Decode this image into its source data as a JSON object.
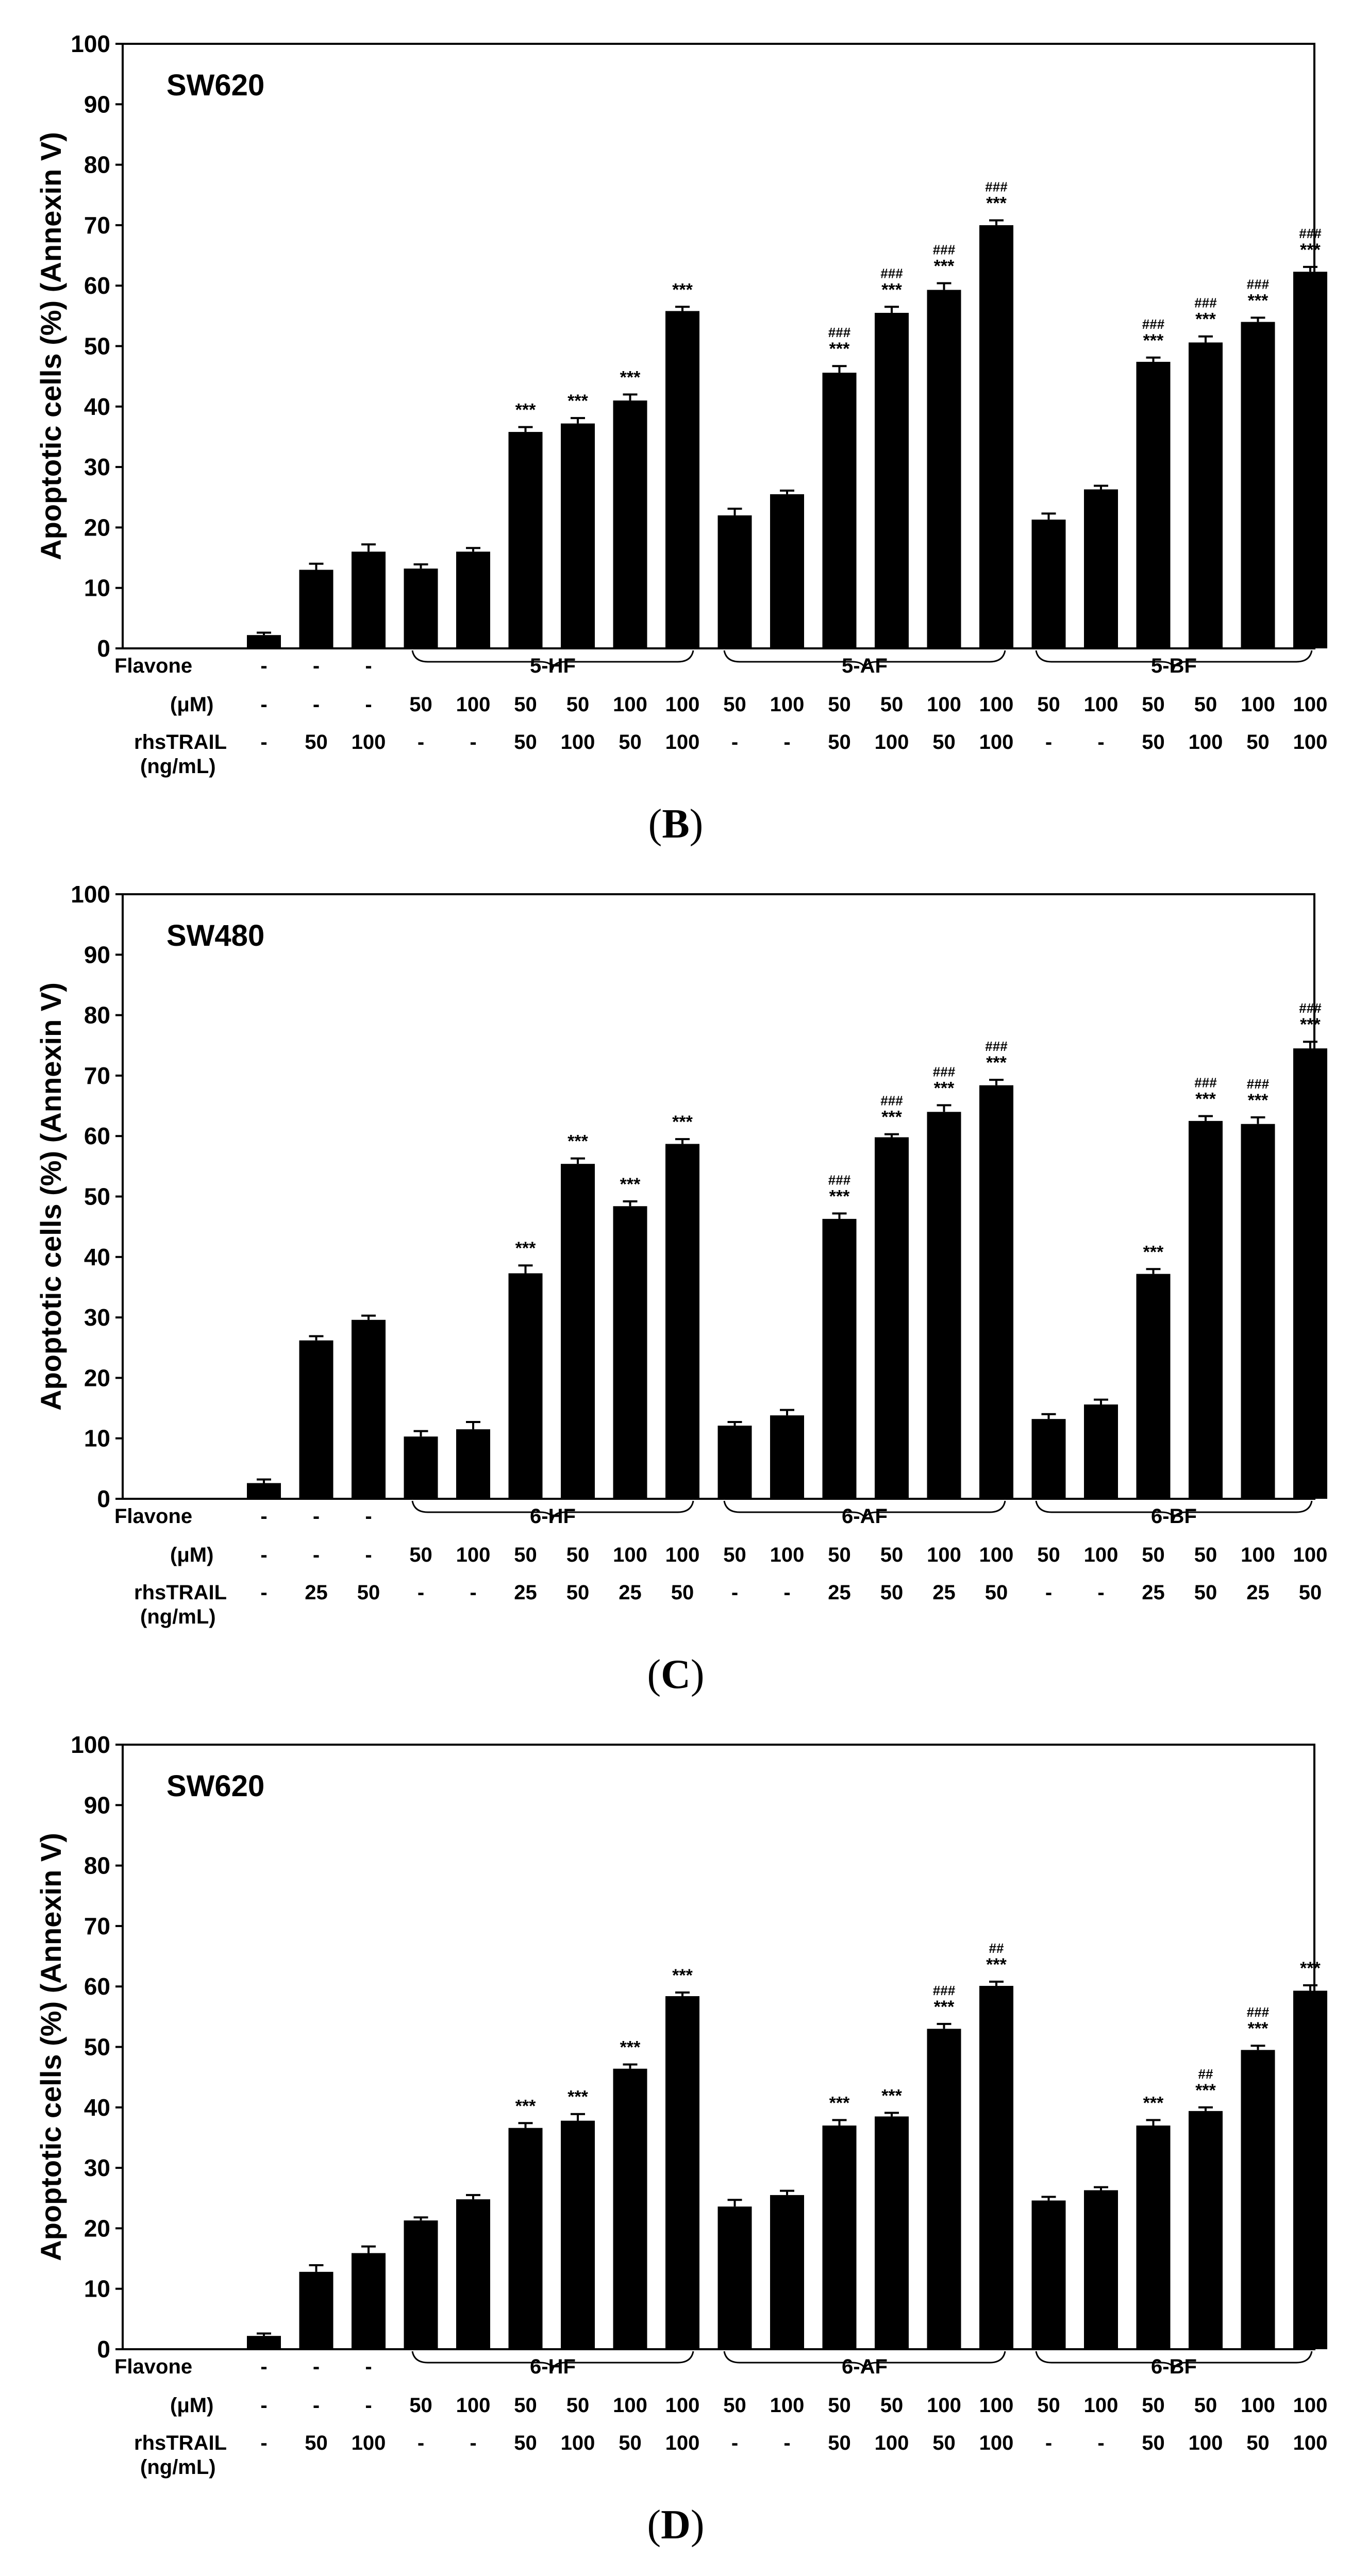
{
  "chart_data": [
    {
      "type": "bar",
      "panel_label": "B",
      "cell_line": "SW620",
      "ylabel": "Apoptotic cells  (%) (Annexin V)",
      "ylim": [
        0,
        100
      ],
      "yticks": [
        "0",
        "10",
        "20",
        "30",
        "40",
        "50",
        "60",
        "70",
        "80",
        "90",
        "100"
      ],
      "row_labels": {
        "flavone": "Flavone",
        "conc": "(μM)",
        "trail": "rhsTRAIL",
        "trail_unit": "(ng/mL)"
      },
      "flavone_row": [
        "-",
        "-",
        "-",
        "5-HF",
        "5-AF",
        "5-BF"
      ],
      "conc_row": [
        "-",
        "-",
        "-",
        "50",
        "100",
        "50",
        "50",
        "100",
        "100",
        "50",
        "100",
        "50",
        "50",
        "100",
        "100",
        "50",
        "100",
        "50",
        "50",
        "100",
        "100"
      ],
      "trail_row": [
        "-",
        "50",
        "100",
        "-",
        "-",
        "50",
        "100",
        "50",
        "100",
        "-",
        "-",
        "50",
        "100",
        "50",
        "100",
        "-",
        "-",
        "50",
        "100",
        "50",
        "100"
      ],
      "values": [
        2.2,
        13.0,
        16.0,
        13.2,
        16.0,
        35.8,
        37.2,
        41.0,
        55.8,
        22.0,
        25.5,
        45.6,
        55.5,
        59.3,
        70.0,
        21.3,
        26.3,
        47.4,
        50.6,
        54.0,
        62.3
      ],
      "errors": [
        0.4,
        1.0,
        1.2,
        0.7,
        0.6,
        0.8,
        0.9,
        1.0,
        0.7,
        1.1,
        0.6,
        1.1,
        1.0,
        1.1,
        0.8,
        1.0,
        0.6,
        0.7,
        1.0,
        0.7,
        0.8
      ],
      "sig_stars": [
        "",
        "",
        "",
        "",
        "",
        "***",
        "***",
        "***",
        "***",
        "",
        "",
        "***",
        "***",
        "***",
        "***",
        "",
        "",
        "***",
        "***",
        "***",
        "***"
      ],
      "sig_hash": [
        "",
        "",
        "",
        "",
        "",
        "",
        "",
        "",
        "",
        "",
        "",
        "###",
        "###",
        "###",
        "###",
        "",
        "",
        "###",
        "###",
        "###",
        "###"
      ]
    },
    {
      "type": "bar",
      "panel_label": "C",
      "cell_line": "SW480",
      "ylabel": "Apoptotic cells  (%) (Annexin V)",
      "ylim": [
        0,
        100
      ],
      "yticks": [
        "0",
        "10",
        "20",
        "30",
        "40",
        "50",
        "60",
        "70",
        "80",
        "90",
        "100"
      ],
      "row_labels": {
        "flavone": "Flavone",
        "conc": "(μM)",
        "trail": "rhsTRAIL",
        "trail_unit": "(ng/mL)"
      },
      "flavone_row": [
        "-",
        "-",
        "-",
        "6-HF",
        "6-AF",
        "6-BF"
      ],
      "conc_row": [
        "-",
        "-",
        "-",
        "50",
        "100",
        "50",
        "50",
        "100",
        "100",
        "50",
        "100",
        "50",
        "50",
        "100",
        "100",
        "50",
        "100",
        "50",
        "50",
        "100",
        "100"
      ],
      "trail_row": [
        "-",
        "25",
        "50",
        "-",
        "-",
        "25",
        "50",
        "25",
        "50",
        "-",
        "-",
        "25",
        "50",
        "25",
        "50",
        "-",
        "-",
        "25",
        "50",
        "25",
        "50"
      ],
      "values": [
        2.6,
        26.2,
        29.6,
        10.3,
        11.5,
        37.3,
        55.4,
        48.4,
        58.7,
        12.1,
        13.8,
        46.3,
        59.8,
        64.0,
        68.4,
        13.2,
        15.6,
        37.2,
        62.5,
        62.0,
        74.5
      ],
      "errors": [
        0.6,
        0.7,
        0.7,
        0.9,
        1.2,
        1.3,
        0.9,
        0.8,
        0.8,
        0.6,
        0.9,
        0.9,
        0.5,
        1.1,
        0.9,
        0.8,
        0.8,
        0.8,
        0.8,
        1.1,
        1.1
      ],
      "sig_stars": [
        "",
        "",
        "",
        "",
        "",
        "***",
        "***",
        "***",
        "***",
        "",
        "",
        "***",
        "***",
        "***",
        "***",
        "",
        "",
        "***",
        "***",
        "***",
        "***"
      ],
      "sig_hash": [
        "",
        "",
        "",
        "",
        "",
        "",
        "",
        "",
        "",
        "",
        "",
        "###",
        "###",
        "###",
        "###",
        "",
        "",
        "",
        "###",
        "###",
        "###"
      ]
    },
    {
      "type": "bar",
      "panel_label": "D",
      "cell_line": "SW620",
      "ylabel": "Apoptotic cells  (%) (Annexin V)",
      "ylim": [
        0,
        100
      ],
      "yticks": [
        "0",
        "10",
        "20",
        "30",
        "40",
        "50",
        "60",
        "70",
        "80",
        "90",
        "100"
      ],
      "row_labels": {
        "flavone": "Flavone",
        "conc": "(μM)",
        "trail": "rhsTRAIL",
        "trail_unit": "(ng/mL)"
      },
      "flavone_row": [
        "-",
        "-",
        "-",
        "6-HF",
        "6-AF",
        "6-BF"
      ],
      "conc_row": [
        "-",
        "-",
        "-",
        "50",
        "100",
        "50",
        "50",
        "100",
        "100",
        "50",
        "100",
        "50",
        "50",
        "100",
        "100",
        "50",
        "100",
        "50",
        "50",
        "100",
        "100"
      ],
      "trail_row": [
        "-",
        "50",
        "100",
        "-",
        "-",
        "50",
        "100",
        "50",
        "100",
        "-",
        "-",
        "50",
        "100",
        "50",
        "100",
        "-",
        "-",
        "50",
        "100",
        "50",
        "100"
      ],
      "values": [
        2.2,
        12.8,
        15.9,
        21.3,
        24.8,
        36.6,
        37.8,
        46.4,
        58.4,
        23.6,
        25.5,
        37.0,
        38.5,
        53.0,
        60.1,
        24.6,
        26.3,
        37.0,
        39.4,
        49.5,
        59.3
      ],
      "errors": [
        0.4,
        1.1,
        1.1,
        0.5,
        0.7,
        0.8,
        1.1,
        0.7,
        0.6,
        1.1,
        0.7,
        0.9,
        0.6,
        0.8,
        0.7,
        0.6,
        0.5,
        0.9,
        0.6,
        0.7,
        0.9
      ],
      "sig_stars": [
        "",
        "",
        "",
        "",
        "",
        "***",
        "***",
        "***",
        "***",
        "",
        "",
        "***",
        "***",
        "***",
        "***",
        "",
        "",
        "***",
        "***",
        "***",
        "***"
      ],
      "sig_hash": [
        "",
        "",
        "",
        "",
        "",
        "",
        "",
        "",
        "",
        "",
        "",
        "",
        "",
        "###",
        "##",
        "",
        "",
        "",
        "##",
        "###",
        ""
      ]
    }
  ]
}
